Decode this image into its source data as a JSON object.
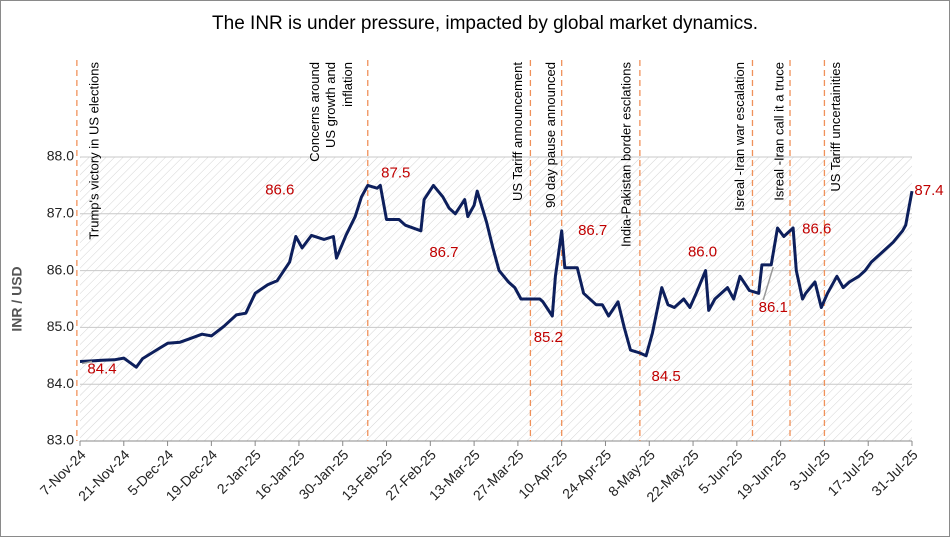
{
  "chart_data": {
    "type": "line",
    "title": "The INR is under pressure, impacted by global market dynamics.",
    "y_label": "INR / USD",
    "xlim": [
      "7-Nov-24",
      "31-Jul-25"
    ],
    "xticks": [
      "7-Nov-24",
      "21-Nov-24",
      "5-Dec-24",
      "19-Dec-24",
      "2-Jan-25",
      "16-Jan-25",
      "30-Jan-25",
      "13-Feb-25",
      "27-Feb-25",
      "13-Mar-25",
      "27-Mar-25",
      "10-Apr-25",
      "24-Apr-25",
      "8-May-25",
      "22-May-25",
      "5-Jun-25",
      "19-Jun-25",
      "3-Jul-25",
      "17-Jul-25",
      "31-Jul-25"
    ],
    "ylim": [
      83,
      88
    ],
    "yticks": [
      {
        "value": 83,
        "label": "83.0"
      },
      {
        "value": 84,
        "label": "84.0"
      },
      {
        "value": 85,
        "label": "85.0"
      },
      {
        "value": 86,
        "label": "86.0"
      },
      {
        "value": 87,
        "label": "87.0"
      },
      {
        "value": 88,
        "label": "88.0"
      }
    ],
    "grid": true,
    "series": [
      {
        "color": "#0d1f5c",
        "x": [
          "7-Nov-24",
          "11-Nov-24",
          "14-Nov-24",
          "18-Nov-24",
          "21-Nov-24",
          "25-Nov-24",
          "27-Nov-24",
          "2-Dec-24",
          "5-Dec-24",
          "9-Dec-24",
          "12-Dec-24",
          "16-Dec-24",
          "19-Dec-24",
          "23-Dec-24",
          "27-Dec-24",
          "30-Dec-24",
          "2-Jan-25",
          "6-Jan-25",
          "9-Jan-25",
          "13-Jan-25",
          "15-Jan-25",
          "17-Jan-25",
          "20-Jan-25",
          "24-Jan-25",
          "27-Jan-25",
          "28-Jan-25",
          "31-Jan-25",
          "3-Feb-25",
          "5-Feb-25",
          "7-Feb-25",
          "10-Feb-25",
          "11-Feb-25",
          "13-Feb-25",
          "17-Feb-25",
          "19-Feb-25",
          "24-Feb-25",
          "25-Feb-25",
          "28-Feb-25",
          "3-Mar-25",
          "5-Mar-25",
          "7-Mar-25",
          "10-Mar-25",
          "11-Mar-25",
          "13-Mar-25",
          "14-Mar-25",
          "17-Mar-25",
          "19-Mar-25",
          "21-Mar-25",
          "24-Mar-25",
          "26-Mar-25",
          "28-Mar-25",
          "1-Apr-25",
          "3-Apr-25",
          "4-Apr-25",
          "7-Apr-25",
          "8-Apr-25",
          "10-Apr-25",
          "11-Apr-25",
          "15-Apr-25",
          "17-Apr-25",
          "21-Apr-25",
          "23-Apr-25",
          "25-Apr-25",
          "28-Apr-25",
          "30-Apr-25",
          "2-May-25",
          "5-May-25",
          "7-May-25",
          "9-May-25",
          "12-May-25",
          "14-May-25",
          "16-May-25",
          "19-May-25",
          "21-May-25",
          "23-May-25",
          "26-May-25",
          "27-May-25",
          "29-May-25",
          "2-Jun-25",
          "4-Jun-25",
          "6-Jun-25",
          "9-Jun-25",
          "12-Jun-25",
          "13-Jun-25",
          "16-Jun-25",
          "18-Jun-25",
          "20-Jun-25",
          "23-Jun-25",
          "24-Jun-25",
          "26-Jun-25",
          "27-Jun-25",
          "30-Jun-25",
          "2-Jul-25",
          "4-Jul-25",
          "7-Jul-25",
          "9-Jul-25",
          "11-Jul-25",
          "14-Jul-25",
          "16-Jul-25",
          "18-Jul-25",
          "21-Jul-25",
          "23-Jul-25",
          "25-Jul-25",
          "28-Jul-25",
          "29-Jul-25",
          "31-Jul-25"
        ],
        "values": [
          84.4,
          84.41,
          84.42,
          84.43,
          84.46,
          84.3,
          84.45,
          84.62,
          84.72,
          84.74,
          84.8,
          84.88,
          84.85,
          85.02,
          85.22,
          85.25,
          85.6,
          85.75,
          85.82,
          86.15,
          86.6,
          86.4,
          86.62,
          86.55,
          86.6,
          86.22,
          86.62,
          86.95,
          87.3,
          87.5,
          87.45,
          87.5,
          86.9,
          86.9,
          86.8,
          86.7,
          87.25,
          87.5,
          87.3,
          87.1,
          87.0,
          87.25,
          86.95,
          87.15,
          87.4,
          86.85,
          86.4,
          86.0,
          85.8,
          85.7,
          85.5,
          85.5,
          85.5,
          85.45,
          85.2,
          85.9,
          86.7,
          86.05,
          86.05,
          85.6,
          85.4,
          85.4,
          85.2,
          85.45,
          85.0,
          84.6,
          84.55,
          84.5,
          84.9,
          85.7,
          85.4,
          85.35,
          85.5,
          85.35,
          85.6,
          86.0,
          85.3,
          85.5,
          85.7,
          85.5,
          85.9,
          85.65,
          85.6,
          86.1,
          86.1,
          86.75,
          86.6,
          86.75,
          86.0,
          85.5,
          85.6,
          85.8,
          85.35,
          85.6,
          85.9,
          85.7,
          85.8,
          85.9,
          86.0,
          86.15,
          86.3,
          86.4,
          86.5,
          86.7,
          86.8,
          87.4
        ],
        "value_labels": [
          "84.4",
          null,
          null,
          null,
          null,
          null,
          null,
          null,
          null,
          null,
          null,
          null,
          null,
          null,
          null,
          null,
          null,
          null,
          null,
          null,
          "86.6",
          null,
          null,
          null,
          null,
          null,
          null,
          null,
          null,
          "87.5",
          null,
          null,
          null,
          null,
          null,
          "86.7",
          null,
          null,
          null,
          null,
          null,
          null,
          null,
          null,
          null,
          null,
          null,
          null,
          null,
          null,
          null,
          null,
          null,
          null,
          "85.2",
          null,
          "86.7",
          null,
          null,
          null,
          null,
          null,
          null,
          null,
          null,
          null,
          null,
          "84.5",
          null,
          null,
          null,
          null,
          null,
          null,
          null,
          "86.0",
          null,
          null,
          null,
          null,
          null,
          null,
          null,
          null,
          "86.1",
          null,
          "86.6",
          null,
          null,
          null,
          null,
          null,
          null,
          null,
          null,
          null,
          null,
          null,
          null,
          null,
          null,
          null,
          null,
          null,
          null,
          "87.4"
        ]
      }
    ],
    "annotations": [
      {
        "x": "6-Nov-24",
        "lines": [
          "Trump's victory in US elections"
        ]
      },
      {
        "x": "7-Feb-25",
        "lines": [
          "Concerns around",
          "US growth and",
          "inflation"
        ]
      },
      {
        "x": "31-Mar-25",
        "lines": [
          "US Tariff announcement"
        ]
      },
      {
        "x": "10-Apr-25",
        "lines": [
          "90 day pause announced"
        ]
      },
      {
        "x": "5-May-25",
        "lines": [
          "India-Pakistan border esclations"
        ]
      },
      {
        "x": "10-Jun-25",
        "lines": [
          "Isreal -Iran war escalation"
        ]
      },
      {
        "x": "22-Jun-25",
        "lines": [
          "Isreal -Iran call it a truce"
        ]
      },
      {
        "x": "3-Jul-25",
        "lines": [
          "US Tariff uncertainities"
        ]
      }
    ]
  }
}
